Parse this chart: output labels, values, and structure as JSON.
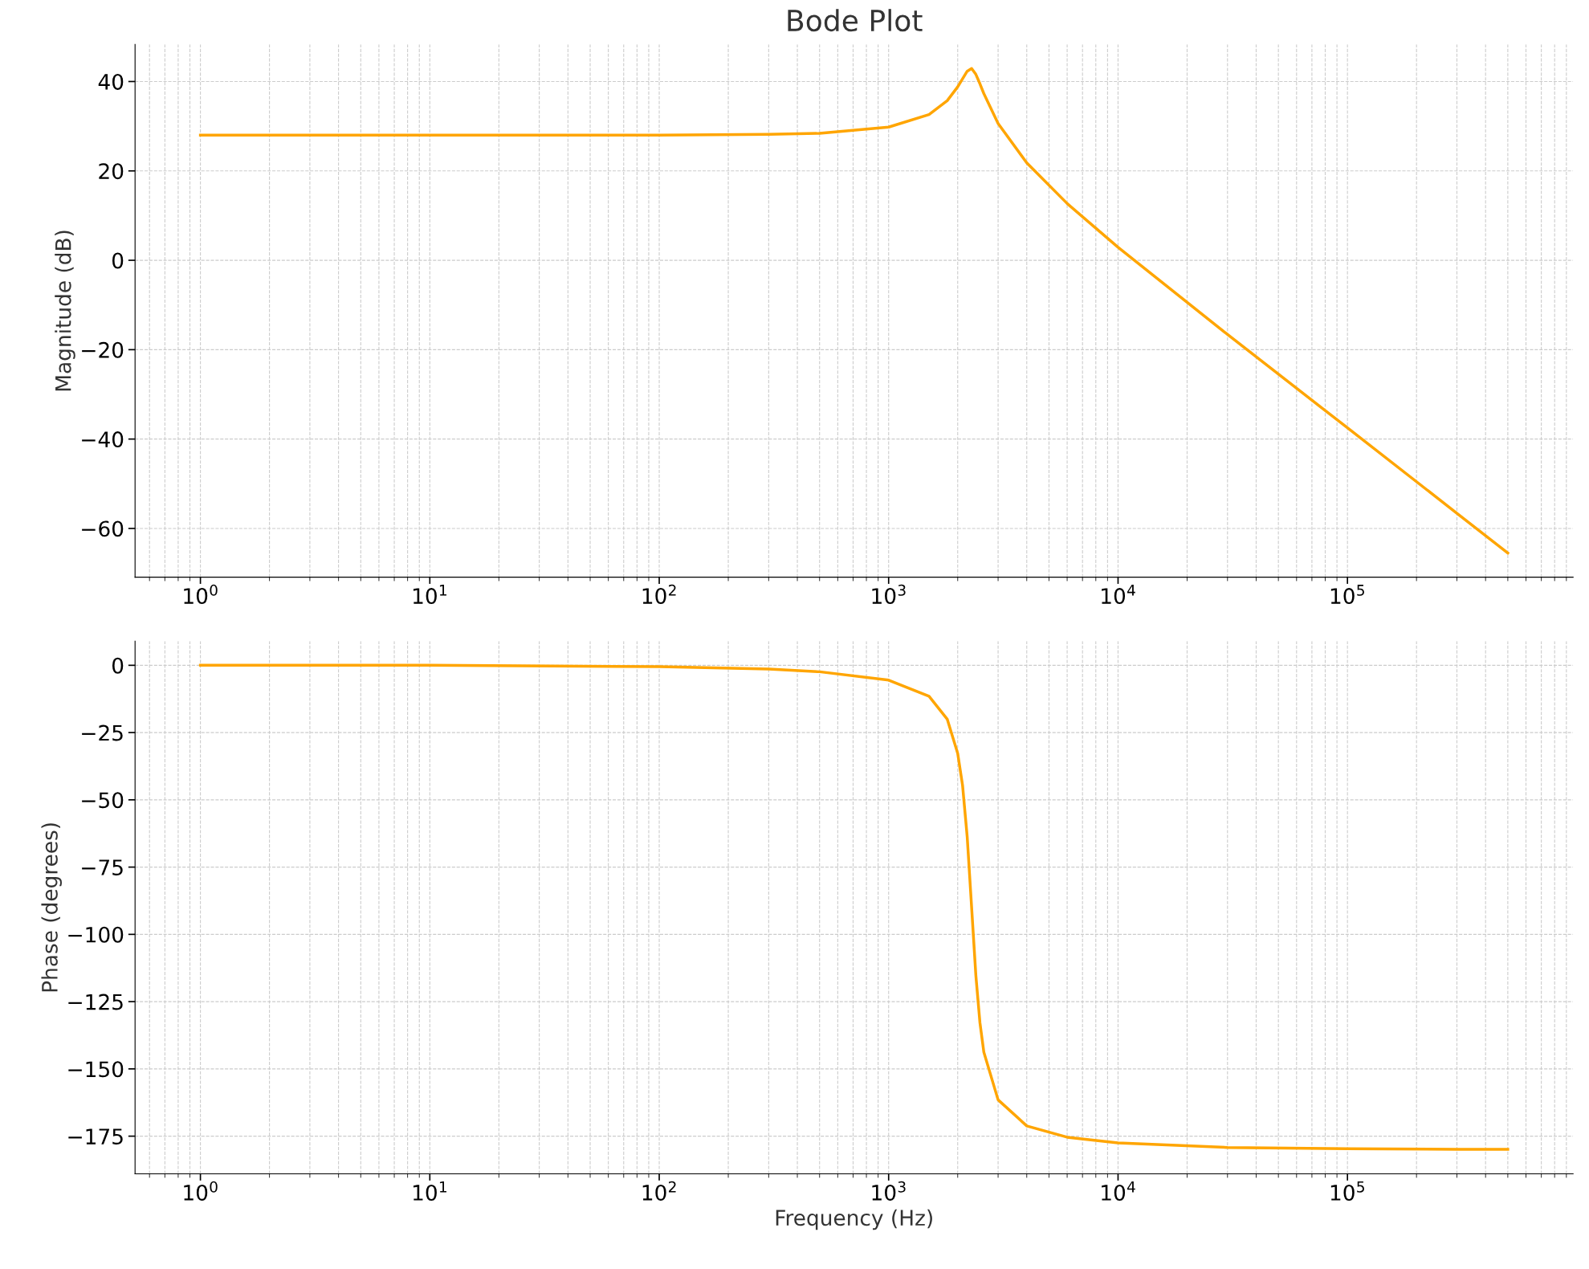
{
  "chart_data": [
    {
      "type": "line",
      "title": "Bode Plot",
      "ylabel": "Magnitude (dB)",
      "log": "x",
      "grid": true,
      "x": [
        1,
        10,
        100,
        300,
        500,
        1000,
        1500,
        1800,
        2000,
        2100,
        2200,
        2300,
        2400,
        2500,
        2600,
        3000,
        4000,
        6000,
        10000,
        30000,
        100000,
        300000,
        500000
      ],
      "series": [
        {
          "color": "#ffa500",
          "values": [
            28,
            28,
            28.0,
            28.2,
            28.4,
            29.8,
            32.6,
            35.7,
            38.8,
            40.6,
            42.3,
            42.9,
            41.6,
            39.5,
            37.3,
            30.6,
            21.8,
            12.7,
            2.9,
            -16.6,
            -37.5,
            -56.6,
            -65.5
          ]
        }
      ],
      "xlim": [
        0.519,
        963000
      ],
      "xticks": [
        {
          "value": 1,
          "label": "10$^{0}$"
        },
        {
          "value": 10,
          "label": "10$^{1}$"
        },
        {
          "value": 100,
          "label": "10$^{2}$"
        },
        {
          "value": 1000,
          "label": "10$^{3}$"
        },
        {
          "value": 10000,
          "label": "10$^{4}$"
        },
        {
          "value": 100000,
          "label": "10$^{5}$"
        }
      ],
      "ylim": [
        -70.9,
        48.3
      ],
      "yticks": [
        {
          "value": -60,
          "label": "−60"
        },
        {
          "value": -40,
          "label": "−40"
        },
        {
          "value": -20,
          "label": "−20"
        },
        0,
        20,
        40
      ]
    },
    {
      "type": "line",
      "xlabel": "Frequency (Hz)",
      "ylabel": "Phase (degrees)",
      "log": "x",
      "grid": true,
      "x": [
        1,
        10,
        100,
        300,
        500,
        1000,
        1500,
        1800,
        2000,
        2100,
        2200,
        2300,
        2400,
        2500,
        2600,
        3000,
        4000,
        6000,
        10000,
        30000,
        100000,
        300000,
        500000
      ],
      "series": [
        {
          "color": "#ffa500",
          "values": [
            0,
            0,
            -0.5,
            -1.4,
            -2.4,
            -5.5,
            -11.5,
            -20,
            -32.7,
            -44.6,
            -63.7,
            -90,
            -115.3,
            -132.8,
            -143.8,
            -161.5,
            -171.2,
            -175.4,
            -177.5,
            -179.2,
            -179.7,
            -179.9,
            -179.9
          ]
        }
      ],
      "xlim": [
        0.519,
        963000
      ],
      "xticks": [
        {
          "value": 1,
          "label": "10$^{0}$"
        },
        {
          "value": 10,
          "label": "10$^{1}$"
        },
        {
          "value": 100,
          "label": "10$^{2}$"
        },
        {
          "value": 1000,
          "label": "10$^{3}$"
        },
        {
          "value": 10000,
          "label": "10$^{4}$"
        },
        {
          "value": 100000,
          "label": "10$^{5}$"
        }
      ],
      "ylim": [
        -189,
        9
      ],
      "yticks": [
        {
          "value": -175,
          "label": "−175"
        },
        {
          "value": -150,
          "label": "−150"
        },
        {
          "value": -125,
          "label": "−125"
        },
        {
          "value": -100,
          "label": "−100"
        },
        {
          "value": -75,
          "label": "−75"
        },
        {
          "value": -50,
          "label": "−50"
        },
        {
          "value": -25,
          "label": "−25"
        },
        0
      ]
    }
  ]
}
